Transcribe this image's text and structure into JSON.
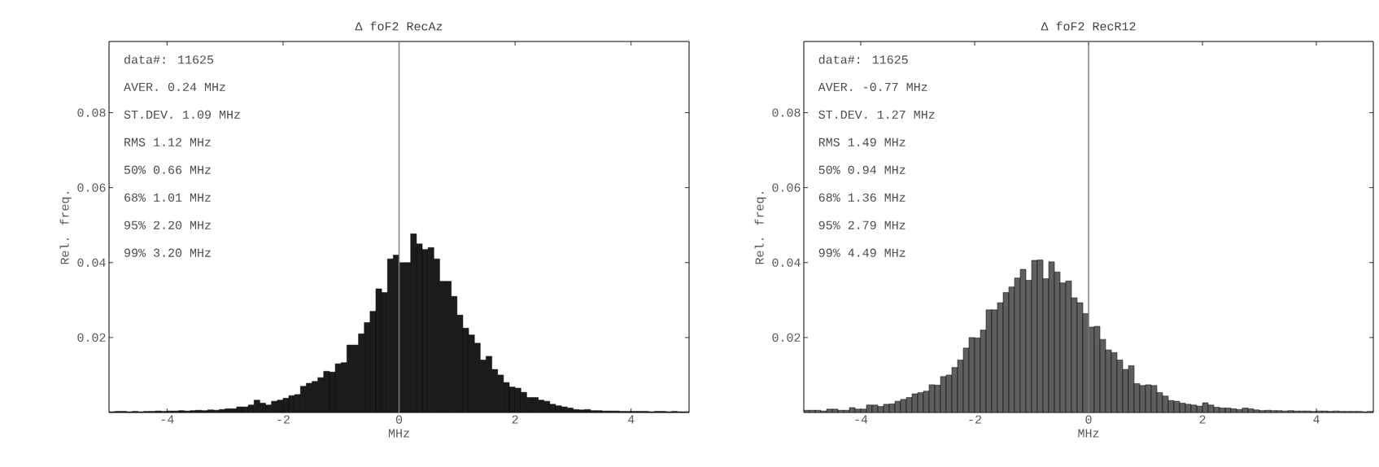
{
  "chart_data": [
    {
      "type": "histogram",
      "title": "Δ foF2 RecAz",
      "xlabel": "MHz",
      "ylabel": "Rel. freq.",
      "color": "#1c1c1c",
      "bins": [
        -5.0,
        -4.9,
        -4.8,
        -4.7,
        -4.6,
        -4.5,
        -4.4,
        -4.3,
        -4.2,
        -4.1,
        -4.0,
        -3.9,
        -3.8,
        -3.7,
        -3.6,
        -3.5,
        -3.4,
        -3.3,
        -3.2,
        -3.1,
        -3.0,
        -2.9,
        -2.8,
        -2.7,
        -2.6,
        -2.5,
        -2.4,
        -2.3,
        -2.2,
        -2.1,
        -2.0,
        -1.9,
        -1.8,
        -1.7,
        -1.6,
        -1.5,
        -1.4,
        -1.3,
        -1.2,
        -1.1,
        -1.0,
        -0.9,
        -0.8,
        -0.7,
        -0.6,
        -0.5,
        -0.4,
        -0.3,
        -0.2,
        -0.1,
        0.0,
        0.1,
        0.2,
        0.3,
        0.4,
        0.5,
        0.6,
        0.7,
        0.8,
        0.9,
        1.0,
        1.1,
        1.2,
        1.3,
        1.4,
        1.5,
        1.6,
        1.7,
        1.8,
        1.9,
        2.0,
        2.1,
        2.2,
        2.3,
        2.4,
        2.5,
        2.6,
        2.7,
        2.8,
        2.9,
        3.0,
        3.1,
        3.2,
        3.3,
        3.4,
        3.5,
        3.6,
        3.7,
        3.8,
        3.9,
        4.0,
        4.1,
        4.2,
        4.3,
        4.4,
        4.5,
        4.6,
        4.7,
        4.8,
        4.9,
        5.0
      ],
      "values": [
        0.0002,
        0.0003,
        0.0003,
        0.0002,
        0.0003,
        0.0002,
        0.0003,
        0.0003,
        0.0004,
        0.0003,
        0.0004,
        0.0004,
        0.0005,
        0.0004,
        0.0005,
        0.0006,
        0.0005,
        0.0007,
        0.0006,
        0.0008,
        0.001,
        0.001,
        0.0015,
        0.0015,
        0.002,
        0.0033,
        0.0025,
        0.002,
        0.003,
        0.0033,
        0.0038,
        0.0045,
        0.0048,
        0.007,
        0.0078,
        0.0083,
        0.0093,
        0.011,
        0.0108,
        0.013,
        0.0133,
        0.018,
        0.018,
        0.021,
        0.024,
        0.027,
        0.033,
        0.032,
        0.041,
        0.042,
        0.04,
        0.04,
        0.0477,
        0.045,
        0.0435,
        0.044,
        0.041,
        0.035,
        0.035,
        0.031,
        0.026,
        0.0225,
        0.0207,
        0.0185,
        0.014,
        0.015,
        0.0115,
        0.01,
        0.008,
        0.0068,
        0.0065,
        0.0054,
        0.004,
        0.004,
        0.0033,
        0.003,
        0.0022,
        0.0018,
        0.0015,
        0.0012,
        0.0008,
        0.0007,
        0.0008,
        0.0005,
        0.0005,
        0.0004,
        0.0004,
        0.0004,
        0.0003,
        0.0003,
        0.0003,
        0.0003,
        0.0003,
        0.0002,
        0.0003,
        0.0003,
        0.0002,
        0.0003,
        0.0002,
        0.0002
      ],
      "xlim": [
        -5,
        5
      ],
      "ylim": [
        0,
        0.099
      ],
      "xticks": [
        -4,
        -2,
        0,
        2,
        4
      ],
      "yticks": [
        0.02,
        0.04,
        0.06,
        0.08
      ],
      "ref_lines": [
        {
          "axis": "x",
          "value": 0,
          "color": "#808080"
        }
      ],
      "annotations": [
        "data#: 11625",
        "AVER. 0.24 MHz",
        "ST.DEV. 1.09 MHz",
        "RMS 1.12 MHz",
        "50% 0.66 MHz",
        "68% 1.01 MHz",
        "95% 2.20 MHz",
        "99% 3.20 MHz"
      ]
    },
    {
      "type": "histogram",
      "title": "Δ foF2 RecR12",
      "xlabel": "MHz",
      "ylabel": "Rel. freq.",
      "color": "#5f5f5f",
      "bins": [
        -5.0,
        -4.9,
        -4.8,
        -4.7,
        -4.6,
        -4.5,
        -4.4,
        -4.3,
        -4.2,
        -4.1,
        -4.0,
        -3.9,
        -3.8,
        -3.7,
        -3.6,
        -3.5,
        -3.4,
        -3.3,
        -3.2,
        -3.1,
        -3.0,
        -2.9,
        -2.8,
        -2.7,
        -2.6,
        -2.5,
        -2.4,
        -2.3,
        -2.2,
        -2.1,
        -2.0,
        -1.9,
        -1.8,
        -1.7,
        -1.6,
        -1.5,
        -1.4,
        -1.3,
        -1.2,
        -1.1,
        -1.0,
        -0.9,
        -0.8,
        -0.7,
        -0.6,
        -0.5,
        -0.4,
        -0.3,
        -0.2,
        -0.1,
        0.0,
        0.1,
        0.2,
        0.3,
        0.4,
        0.5,
        0.6,
        0.7,
        0.8,
        0.9,
        1.0,
        1.1,
        1.2,
        1.3,
        1.4,
        1.5,
        1.6,
        1.7,
        1.8,
        1.9,
        2.0,
        2.1,
        2.2,
        2.3,
        2.4,
        2.5,
        2.6,
        2.7,
        2.8,
        2.9,
        3.0,
        3.1,
        3.2,
        3.3,
        3.4,
        3.5,
        3.6,
        3.7,
        3.8,
        3.9,
        4.0,
        4.1,
        4.2,
        4.3,
        4.4,
        4.5,
        4.6,
        4.7,
        4.8,
        4.9,
        5.0
      ],
      "values": [
        0.0006,
        0.0006,
        0.0006,
        0.0004,
        0.0009,
        0.0009,
        0.0006,
        0.0006,
        0.0013,
        0.0009,
        0.0009,
        0.002,
        0.002,
        0.0016,
        0.0022,
        0.0023,
        0.003,
        0.0035,
        0.004,
        0.005,
        0.0053,
        0.0057,
        0.0074,
        0.0073,
        0.0096,
        0.01,
        0.012,
        0.014,
        0.0172,
        0.02,
        0.0199,
        0.022,
        0.0274,
        0.0274,
        0.0293,
        0.032,
        0.0335,
        0.0359,
        0.0382,
        0.0353,
        0.0406,
        0.0407,
        0.0357,
        0.0402,
        0.0375,
        0.0346,
        0.0351,
        0.0306,
        0.0293,
        0.0264,
        0.0228,
        0.023,
        0.0195,
        0.0167,
        0.016,
        0.014,
        0.0115,
        0.0125,
        0.0077,
        0.0072,
        0.0074,
        0.0072,
        0.0053,
        0.0044,
        0.0032,
        0.003,
        0.0025,
        0.0022,
        0.002,
        0.0017,
        0.0026,
        0.002,
        0.0014,
        0.0012,
        0.0012,
        0.001,
        0.0008,
        0.0012,
        0.001,
        0.0007,
        0.0005,
        0.0006,
        0.0005,
        0.0005,
        0.0004,
        0.0005,
        0.0004,
        0.0004,
        0.0004,
        0.0003,
        0.0004,
        0.0004,
        0.0003,
        0.0004,
        0.0003,
        0.0003,
        0.0003,
        0.0003,
        0.0002,
        0.0003
      ],
      "xlim": [
        -5,
        5
      ],
      "ylim": [
        0,
        0.099
      ],
      "xticks": [
        -4,
        -2,
        0,
        2,
        4
      ],
      "yticks": [
        0.02,
        0.04,
        0.06,
        0.08
      ],
      "ref_lines": [
        {
          "axis": "x",
          "value": 0,
          "color": "#808080"
        }
      ],
      "annotations": [
        "data#: 11625",
        "AVER. -0.77 MHz",
        "ST.DEV. 1.27 MHz",
        "RMS 1.49 MHz",
        "50% 0.94 MHz",
        "68% 1.36 MHz",
        "95% 2.79 MHz",
        "99% 4.49 MHz"
      ]
    }
  ]
}
